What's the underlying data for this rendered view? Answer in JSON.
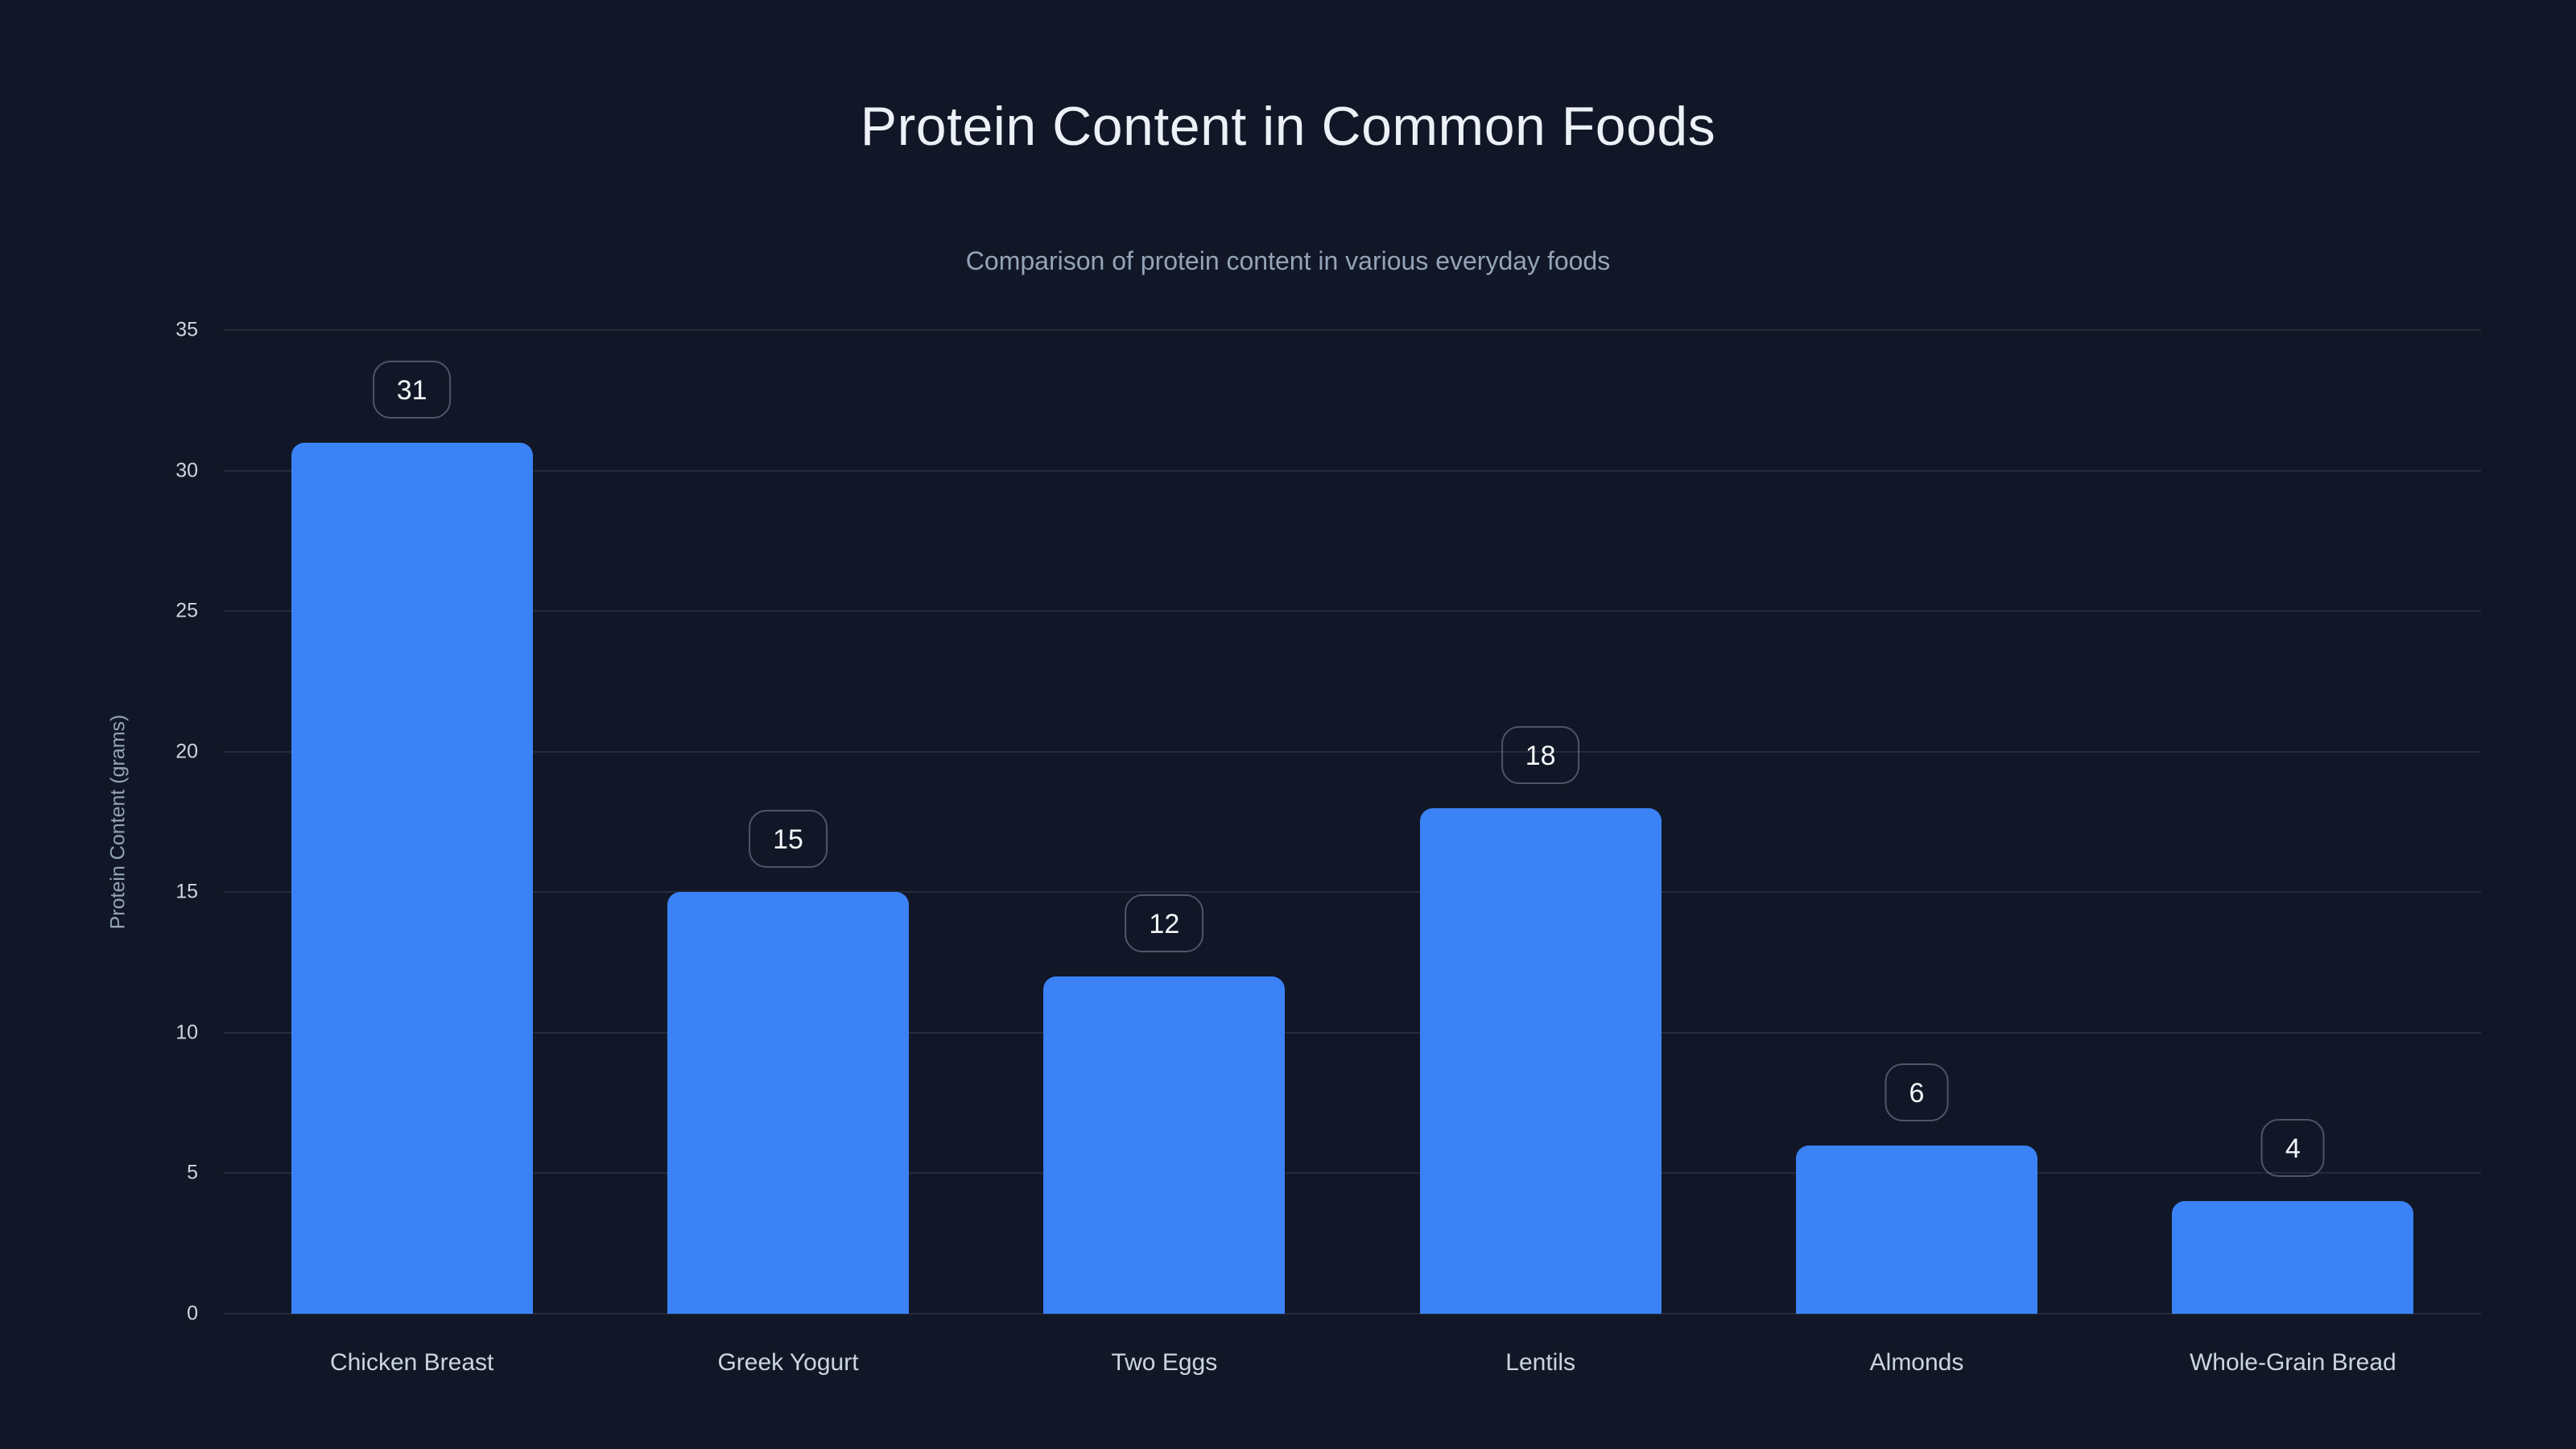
{
  "chart_data": {
    "type": "bar",
    "title": "Protein Content in Common Foods",
    "subtitle": "Comparison of protein content in various everyday foods",
    "ylabel": "Protein Content (grams)",
    "xlabel": "",
    "categories": [
      "Chicken Breast",
      "Greek Yogurt",
      "Two Eggs",
      "Lentils",
      "Almonds",
      "Whole-Grain Bread"
    ],
    "values": [
      31,
      15,
      12,
      18,
      6,
      4
    ],
    "data_labels": [
      "31",
      "15",
      "12",
      "18",
      "6",
      "4"
    ],
    "ylim": [
      0,
      35
    ],
    "yticks": [
      0,
      5,
      10,
      15,
      20,
      25,
      30,
      35
    ],
    "grid": "horizontal-only",
    "legend": "none",
    "colors": {
      "background": "#111726",
      "bar": "#3b82f6",
      "gridline": "rgba(148,163,184,0.15)",
      "title_text": "#edf1f7",
      "subtitle_text": "#94a3b8",
      "tick_label_text": "#cbd5e1",
      "axis_title_text": "#94a3b8",
      "badge_text": "#f4f6f9",
      "badge_border": "rgba(148,163,184,0.45)"
    }
  }
}
